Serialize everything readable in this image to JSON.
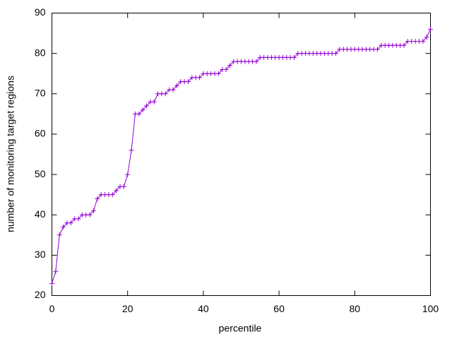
{
  "chart_data": {
    "type": "line",
    "xlabel": "percentile",
    "ylabel": "number of monitoring target regions",
    "x": [
      0,
      1,
      2,
      3,
      4,
      5,
      6,
      7,
      8,
      9,
      10,
      11,
      12,
      13,
      14,
      15,
      16,
      17,
      18,
      19,
      20,
      21,
      22,
      23,
      24,
      25,
      26,
      27,
      28,
      29,
      30,
      31,
      32,
      33,
      34,
      35,
      36,
      37,
      38,
      39,
      40,
      41,
      42,
      43,
      44,
      45,
      46,
      47,
      48,
      49,
      50,
      51,
      52,
      53,
      54,
      55,
      56,
      57,
      58,
      59,
      60,
      61,
      62,
      63,
      64,
      65,
      66,
      67,
      68,
      69,
      70,
      71,
      72,
      73,
      74,
      75,
      76,
      77,
      78,
      79,
      80,
      81,
      82,
      83,
      84,
      85,
      86,
      87,
      88,
      89,
      90,
      91,
      92,
      93,
      94,
      95,
      96,
      97,
      98,
      99,
      100
    ],
    "series": [
      {
        "color": "#9400d3",
        "values": [
          23,
          26,
          35,
          37,
          38,
          38,
          39,
          39,
          40,
          40,
          40,
          41,
          44,
          45,
          45,
          45,
          45,
          46,
          47,
          47,
          50,
          56,
          65,
          65,
          66,
          67,
          68,
          68,
          70,
          70,
          70,
          71,
          71,
          72,
          73,
          73,
          73,
          74,
          74,
          74,
          75,
          75,
          75,
          75,
          75,
          76,
          76,
          77,
          78,
          78,
          78,
          78,
          78,
          78,
          78,
          79,
          79,
          79,
          79,
          79,
          79,
          79,
          79,
          79,
          79,
          80,
          80,
          80,
          80,
          80,
          80,
          80,
          80,
          80,
          80,
          80,
          81,
          81,
          81,
          81,
          81,
          81,
          81,
          81,
          81,
          81,
          81,
          82,
          82,
          82,
          82,
          82,
          82,
          82,
          83,
          83,
          83,
          83,
          83,
          84,
          86
        ]
      }
    ],
    "xlim": [
      0,
      100
    ],
    "xticks": [
      0,
      20,
      40,
      60,
      80,
      100
    ],
    "ylim": [
      20,
      90
    ],
    "yticks": [
      20,
      30,
      40,
      50,
      60,
      70,
      80,
      90
    ],
    "grid": false
  }
}
